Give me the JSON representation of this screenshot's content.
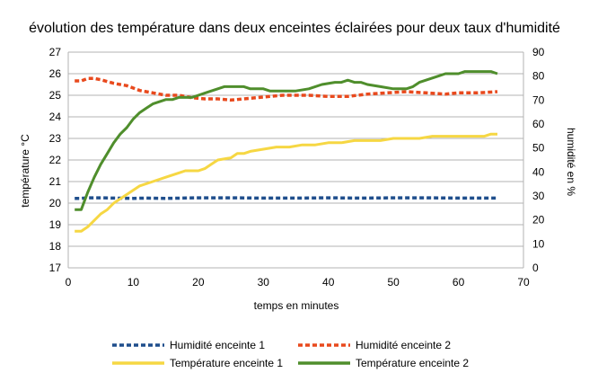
{
  "chart_data": {
    "type": "line",
    "title": "évolution des température dans deux enceintes éclairées pour deux taux d'humidité",
    "xlabel": "temps en minutes",
    "ylabel_left": "température °C",
    "ylabel_right": "humidité en %",
    "xlim": [
      0,
      70
    ],
    "xticks": [
      0,
      10,
      20,
      30,
      40,
      50,
      60,
      70
    ],
    "ylim_left": [
      17,
      27
    ],
    "yticks_left": [
      17,
      18,
      19,
      20,
      21,
      22,
      23,
      24,
      25,
      26,
      27
    ],
    "ylim_right": [
      0,
      90
    ],
    "yticks_right": [
      0,
      10,
      20,
      30,
      40,
      50,
      60,
      70,
      80,
      90
    ],
    "grid": "horizontal",
    "legend_position": "bottom",
    "series": [
      {
        "name": "Humidité enceinte 1",
        "axis": "right",
        "style": "dotted",
        "color": "#1F4E8C",
        "points": [
          [
            1,
            29
          ],
          [
            2,
            29
          ],
          [
            3,
            29.2
          ],
          [
            5,
            29.2
          ],
          [
            7,
            29.1
          ],
          [
            10,
            29
          ],
          [
            12,
            29.1
          ],
          [
            15,
            29
          ],
          [
            20,
            29.2
          ],
          [
            25,
            29.2
          ],
          [
            30,
            29.1
          ],
          [
            35,
            29.1
          ],
          [
            40,
            29.2
          ],
          [
            45,
            29.1
          ],
          [
            50,
            29.2
          ],
          [
            55,
            29.2
          ],
          [
            60,
            29.1
          ],
          [
            66,
            29.1
          ]
        ]
      },
      {
        "name": "Humidité enceinte 2",
        "axis": "right",
        "style": "dotted",
        "color": "#E8491D",
        "points": [
          [
            1,
            78
          ],
          [
            2,
            78
          ],
          [
            3,
            79
          ],
          [
            4,
            79
          ],
          [
            5,
            78.5
          ],
          [
            7,
            77
          ],
          [
            9,
            76
          ],
          [
            11,
            74
          ],
          [
            13,
            73
          ],
          [
            15,
            72
          ],
          [
            17,
            72
          ],
          [
            19,
            71
          ],
          [
            21,
            70.5
          ],
          [
            23,
            70.5
          ],
          [
            25,
            70
          ],
          [
            27,
            70.5
          ],
          [
            29,
            71
          ],
          [
            31,
            71.5
          ],
          [
            33,
            72
          ],
          [
            35,
            72
          ],
          [
            37,
            72
          ],
          [
            40,
            71.5
          ],
          [
            43,
            71.5
          ],
          [
            46,
            72.5
          ],
          [
            49,
            73
          ],
          [
            52,
            73.5
          ],
          [
            55,
            73
          ],
          [
            58,
            72.5
          ],
          [
            60,
            73
          ],
          [
            63,
            73
          ],
          [
            66,
            73.5
          ]
        ]
      },
      {
        "name": "Température enceinte 1",
        "axis": "left",
        "style": "solid",
        "color": "#F6D743",
        "points": [
          [
            1,
            18.7
          ],
          [
            2,
            18.7
          ],
          [
            3,
            18.9
          ],
          [
            4,
            19.2
          ],
          [
            5,
            19.5
          ],
          [
            6,
            19.7
          ],
          [
            7,
            20.0
          ],
          [
            9,
            20.4
          ],
          [
            11,
            20.8
          ],
          [
            13,
            21.0
          ],
          [
            15,
            21.2
          ],
          [
            17,
            21.4
          ],
          [
            18,
            21.5
          ],
          [
            20,
            21.5
          ],
          [
            21,
            21.6
          ],
          [
            22,
            21.8
          ],
          [
            23,
            22.0
          ],
          [
            25,
            22.1
          ],
          [
            26,
            22.3
          ],
          [
            27,
            22.3
          ],
          [
            28,
            22.4
          ],
          [
            30,
            22.5
          ],
          [
            32,
            22.6
          ],
          [
            34,
            22.6
          ],
          [
            36,
            22.7
          ],
          [
            38,
            22.7
          ],
          [
            40,
            22.8
          ],
          [
            42,
            22.8
          ],
          [
            44,
            22.9
          ],
          [
            46,
            22.9
          ],
          [
            48,
            22.9
          ],
          [
            50,
            23.0
          ],
          [
            52,
            23.0
          ],
          [
            54,
            23.0
          ],
          [
            56,
            23.1
          ],
          [
            58,
            23.1
          ],
          [
            60,
            23.1
          ],
          [
            62,
            23.1
          ],
          [
            64,
            23.1
          ],
          [
            65,
            23.2
          ],
          [
            66,
            23.2
          ]
        ]
      },
      {
        "name": "Température enceinte 2",
        "axis": "left",
        "style": "solid",
        "color": "#4F8E2C",
        "points": [
          [
            1,
            19.7
          ],
          [
            2,
            19.7
          ],
          [
            3,
            20.5
          ],
          [
            4,
            21.2
          ],
          [
            5,
            21.8
          ],
          [
            6,
            22.3
          ],
          [
            7,
            22.8
          ],
          [
            8,
            23.2
          ],
          [
            9,
            23.5
          ],
          [
            10,
            23.9
          ],
          [
            11,
            24.2
          ],
          [
            12,
            24.4
          ],
          [
            13,
            24.6
          ],
          [
            14,
            24.7
          ],
          [
            15,
            24.8
          ],
          [
            16,
            24.8
          ],
          [
            17,
            24.9
          ],
          [
            18,
            24.9
          ],
          [
            19,
            24.9
          ],
          [
            20,
            25.0
          ],
          [
            21,
            25.1
          ],
          [
            22,
            25.2
          ],
          [
            23,
            25.3
          ],
          [
            24,
            25.4
          ],
          [
            26,
            25.4
          ],
          [
            27,
            25.4
          ],
          [
            28,
            25.3
          ],
          [
            30,
            25.3
          ],
          [
            31,
            25.2
          ],
          [
            33,
            25.2
          ],
          [
            35,
            25.2
          ],
          [
            37,
            25.3
          ],
          [
            39,
            25.5
          ],
          [
            41,
            25.6
          ],
          [
            42,
            25.6
          ],
          [
            43,
            25.7
          ],
          [
            44,
            25.6
          ],
          [
            45,
            25.6
          ],
          [
            46,
            25.5
          ],
          [
            48,
            25.4
          ],
          [
            50,
            25.3
          ],
          [
            52,
            25.3
          ],
          [
            53,
            25.4
          ],
          [
            54,
            25.6
          ],
          [
            56,
            25.8
          ],
          [
            57,
            25.9
          ],
          [
            58,
            26.0
          ],
          [
            59,
            26.0
          ],
          [
            60,
            26.0
          ],
          [
            61,
            26.1
          ],
          [
            62,
            26.1
          ],
          [
            63,
            26.1
          ],
          [
            64,
            26.1
          ],
          [
            65,
            26.1
          ],
          [
            66,
            26.0
          ]
        ]
      }
    ]
  }
}
